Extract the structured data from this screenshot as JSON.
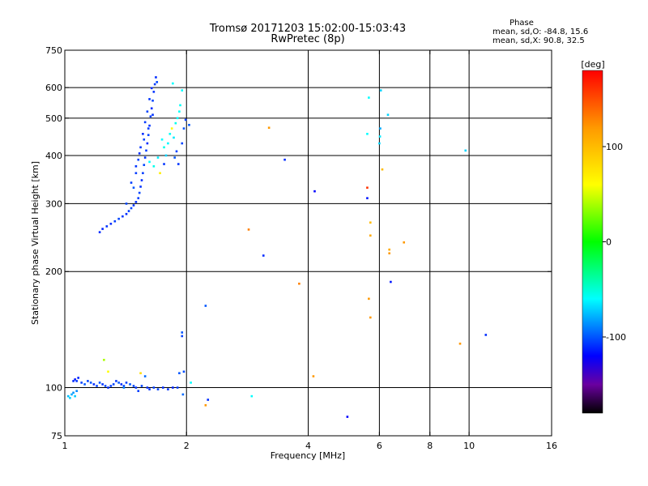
{
  "chart_data": {
    "type": "scatter",
    "title": "Tromsø 20171203 15:02:00-15:03:43",
    "subtitle": "RwPretec (8p)",
    "xlabel": "Frequency [MHz]",
    "ylabel": "Stationary phase Virtual Height [km]",
    "x_scale": "log",
    "y_scale": "log",
    "xlim": [
      1,
      16
    ],
    "ylim": [
      75,
      750
    ],
    "x_ticks": [
      {
        "value": 1,
        "label": "1"
      },
      {
        "value": 2,
        "label": "2"
      },
      {
        "value": 4,
        "label": "4"
      },
      {
        "value": 6,
        "label": "6"
      },
      {
        "value": 8,
        "label": "8"
      },
      {
        "value": 10,
        "label": "10"
      },
      {
        "value": 16,
        "label": "16"
      }
    ],
    "y_ticks": [
      {
        "value": 75,
        "label": "75"
      },
      {
        "value": 100,
        "label": "100"
      },
      {
        "value": 200,
        "label": "200"
      },
      {
        "value": 300,
        "label": "300"
      },
      {
        "value": 400,
        "label": "400"
      },
      {
        "value": 500,
        "label": "500"
      },
      {
        "value": 600,
        "label": "600"
      },
      {
        "value": 750,
        "label": "750"
      }
    ],
    "x_gridlines": [
      2,
      4,
      6,
      8,
      10
    ],
    "y_gridlines": [
      100,
      200,
      300,
      400,
      500,
      600
    ],
    "grid": true,
    "phase_stats": {
      "label": "Phase",
      "line_o": "mean, sd,O: -84.8, 15.6",
      "line_x": "mean, sd,X:  90.8, 32.5"
    },
    "colorbar": {
      "label": "[deg]",
      "range": [
        -180,
        180
      ],
      "ticks": [
        {
          "value": 100,
          "label": "100"
        },
        {
          "value": 0,
          "label": "0"
        },
        {
          "value": -100,
          "label": "-100"
        }
      ],
      "stops": [
        {
          "value": -180,
          "color": "#000000"
        },
        {
          "value": -150,
          "color": "#6a00a0"
        },
        {
          "value": -120,
          "color": "#0000ff"
        },
        {
          "value": -60,
          "color": "#00ffff"
        },
        {
          "value": 0,
          "color": "#00ff00"
        },
        {
          "value": 60,
          "color": "#ffff00"
        },
        {
          "value": 120,
          "color": "#ff9900"
        },
        {
          "value": 180,
          "color": "#ff0000"
        }
      ]
    },
    "points": [
      [
        1.02,
        95,
        -75
      ],
      [
        1.03,
        94,
        -70
      ],
      [
        1.04,
        96,
        -80
      ],
      [
        1.05,
        97,
        -85
      ],
      [
        1.06,
        95,
        -72
      ],
      [
        1.07,
        98,
        -88
      ],
      [
        1.05,
        104,
        -110
      ],
      [
        1.06,
        105,
        -115
      ],
      [
        1.07,
        104,
        -108
      ],
      [
        1.08,
        106,
        -112
      ],
      [
        1.1,
        103,
        -105
      ],
      [
        1.12,
        102,
        -100
      ],
      [
        1.14,
        104,
        -105
      ],
      [
        1.16,
        103,
        -100
      ],
      [
        1.18,
        102,
        -110
      ],
      [
        1.2,
        101,
        -105
      ],
      [
        1.22,
        103,
        -100
      ],
      [
        1.24,
        102,
        -108
      ],
      [
        1.26,
        101,
        -104
      ],
      [
        1.28,
        100,
        -110
      ],
      [
        1.3,
        101,
        -106
      ],
      [
        1.32,
        102,
        -104
      ],
      [
        1.34,
        104,
        -108
      ],
      [
        1.36,
        103,
        -100
      ],
      [
        1.38,
        102,
        -110
      ],
      [
        1.4,
        101,
        -105
      ],
      [
        1.42,
        103,
        -106
      ],
      [
        1.45,
        102,
        -100
      ],
      [
        1.48,
        101,
        -104
      ],
      [
        1.5,
        100,
        -108
      ],
      [
        1.52,
        98,
        -106
      ],
      [
        1.55,
        101,
        -104
      ],
      [
        1.6,
        100,
        -110
      ],
      [
        1.62,
        99,
        -108
      ],
      [
        1.66,
        100,
        -106
      ],
      [
        1.7,
        99,
        -104
      ],
      [
        1.75,
        100,
        -110
      ],
      [
        1.8,
        99,
        -108
      ],
      [
        1.85,
        100,
        -112
      ],
      [
        1.9,
        100,
        -106
      ],
      [
        1.25,
        118,
        40
      ],
      [
        1.54,
        109,
        80
      ],
      [
        1.58,
        107,
        -95
      ],
      [
        1.95,
        136,
        -105
      ],
      [
        1.95,
        139,
        -100
      ],
      [
        1.92,
        109,
        -100
      ],
      [
        1.97,
        110,
        -102
      ],
      [
        1.96,
        96,
        -95
      ],
      [
        2.05,
        103,
        -60
      ],
      [
        1.22,
        253,
        -110
      ],
      [
        1.24,
        258,
        -112
      ],
      [
        1.27,
        262,
        -108
      ],
      [
        1.3,
        266,
        -110
      ],
      [
        1.33,
        270,
        -106
      ],
      [
        1.36,
        274,
        -104
      ],
      [
        1.39,
        278,
        -108
      ],
      [
        1.42,
        282,
        -110
      ],
      [
        1.44,
        287,
        -106
      ],
      [
        1.46,
        292,
        -104
      ],
      [
        1.48,
        297,
        -108
      ],
      [
        1.5,
        303,
        -110
      ],
      [
        1.52,
        310,
        -106
      ],
      [
        1.53,
        320,
        -104
      ],
      [
        1.54,
        332,
        -108
      ],
      [
        1.55,
        345,
        -110
      ],
      [
        1.56,
        360,
        -106
      ],
      [
        1.57,
        378,
        -104
      ],
      [
        1.58,
        395,
        -108
      ],
      [
        1.59,
        412,
        -106
      ],
      [
        1.6,
        430,
        -110
      ],
      [
        1.61,
        452,
        -104
      ],
      [
        1.62,
        478,
        -108
      ],
      [
        1.63,
        505,
        -106
      ],
      [
        1.64,
        530,
        -110
      ],
      [
        1.65,
        555,
        -104
      ],
      [
        1.66,
        585,
        -108
      ],
      [
        1.67,
        612,
        -106
      ],
      [
        1.68,
        638,
        -110
      ],
      [
        1.69,
        620,
        -104
      ],
      [
        1.48,
        330,
        -100
      ],
      [
        1.5,
        360,
        -106
      ],
      [
        1.52,
        390,
        -104
      ],
      [
        1.54,
        420,
        -108
      ],
      [
        1.56,
        455,
        -110
      ],
      [
        1.58,
        488,
        -106
      ],
      [
        1.6,
        520,
        -104
      ],
      [
        1.62,
        560,
        -108
      ],
      [
        1.64,
        598,
        -110
      ],
      [
        1.42,
        300,
        -104
      ],
      [
        1.46,
        340,
        -106
      ],
      [
        1.5,
        375,
        -108
      ],
      [
        1.53,
        405,
        -110
      ],
      [
        1.57,
        440,
        -104
      ],
      [
        1.61,
        470,
        -106
      ],
      [
        1.65,
        510,
        -108
      ],
      [
        1.74,
        440,
        -60
      ],
      [
        1.76,
        420,
        -55
      ],
      [
        1.78,
        400,
        -70
      ],
      [
        1.8,
        430,
        -62
      ],
      [
        1.82,
        455,
        -58
      ],
      [
        1.84,
        470,
        60
      ],
      [
        1.86,
        445,
        -65
      ],
      [
        1.88,
        485,
        -55
      ],
      [
        1.9,
        500,
        -60
      ],
      [
        1.92,
        520,
        -58
      ],
      [
        1.85,
        615,
        -60
      ],
      [
        1.87,
        395,
        -100
      ],
      [
        1.89,
        410,
        -105
      ],
      [
        1.91,
        380,
        -108
      ],
      [
        1.95,
        430,
        -104
      ],
      [
        1.97,
        470,
        -100
      ],
      [
        1.99,
        495,
        -106
      ],
      [
        1.76,
        380,
        -108
      ],
      [
        1.72,
        360,
        70
      ],
      [
        2.03,
        480,
        -100
      ],
      [
        1.62,
        385,
        -60
      ],
      [
        1.66,
        375,
        -55
      ],
      [
        1.7,
        395,
        -65
      ],
      [
        1.93,
        540,
        -58
      ],
      [
        1.95,
        590,
        -60
      ],
      [
        2.23,
        163,
        -100
      ],
      [
        2.26,
        93,
        -110
      ],
      [
        2.23,
        90,
        120
      ],
      [
        2.85,
        257,
        130
      ],
      [
        2.9,
        95,
        -60
      ],
      [
        3.1,
        220,
        -110
      ],
      [
        3.2,
        472,
        120
      ],
      [
        3.5,
        390,
        -110
      ],
      [
        3.8,
        186,
        130
      ],
      [
        4.15,
        323,
        -120
      ],
      [
        4.12,
        107,
        120
      ],
      [
        5.0,
        84,
        -120
      ],
      [
        5.6,
        330,
        160
      ],
      [
        5.6,
        310,
        -115
      ],
      [
        5.65,
        170,
        120
      ],
      [
        5.7,
        268,
        100
      ],
      [
        5.7,
        248,
        110
      ],
      [
        5.7,
        152,
        120
      ],
      [
        5.6,
        455,
        -60
      ],
      [
        5.65,
        565,
        -60
      ],
      [
        6.0,
        430,
        -70
      ],
      [
        6.02,
        448,
        -65
      ],
      [
        6.03,
        470,
        -80
      ],
      [
        6.05,
        590,
        -70
      ],
      [
        6.1,
        368,
        100
      ],
      [
        6.3,
        510,
        -70
      ],
      [
        6.35,
        228,
        110
      ],
      [
        6.35,
        223,
        120
      ],
      [
        6.4,
        188,
        -115
      ],
      [
        6.9,
        238,
        120
      ],
      [
        9.5,
        130,
        120
      ],
      [
        9.8,
        412,
        -70
      ],
      [
        11.0,
        137,
        -110
      ],
      [
        1.28,
        110,
        60
      ],
      [
        1.4,
        100,
        -90
      ]
    ]
  }
}
